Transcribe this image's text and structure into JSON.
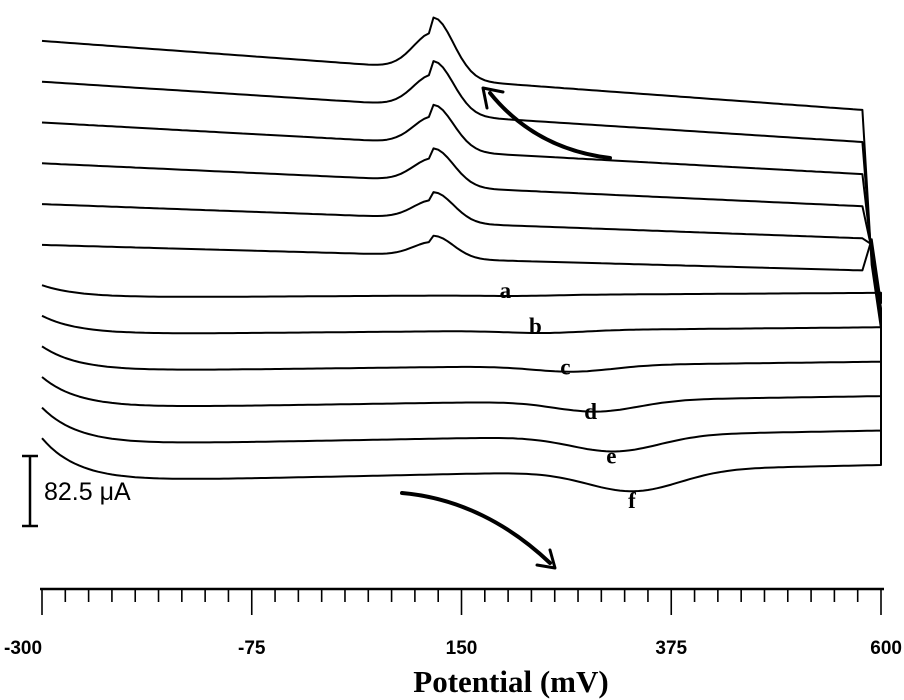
{
  "chart_data": {
    "type": "line",
    "xlabel": "Potential (mV)",
    "ylabel": "",
    "xlim": [
      -300,
      600
    ],
    "x_ticks": [
      -300,
      -75,
      150,
      375,
      600
    ],
    "x_tick_labels": [
      "-300",
      "-75",
      "150",
      "375",
      "600"
    ],
    "minor_tick_step": 25,
    "scale_bar": {
      "value": 82.5,
      "unit": "μA",
      "label": "82.5 μA"
    },
    "arrows": [
      "reverse-scan-left",
      "forward-scan-right"
    ],
    "series": [
      {
        "name": "a",
        "peak_potential": 210,
        "peak_current_uA": -10
      },
      {
        "name": "b",
        "peak_potential": 240,
        "peak_current_uA": -38
      },
      {
        "name": "c",
        "peak_potential": 270,
        "peak_current_uA": -70
      },
      {
        "name": "d",
        "peak_potential": 295,
        "peak_current_uA": -105
      },
      {
        "name": "e",
        "peak_potential": 315,
        "peak_current_uA": -140
      },
      {
        "name": "f",
        "peak_potential": 335,
        "peak_current_uA": -175
      }
    ]
  }
}
